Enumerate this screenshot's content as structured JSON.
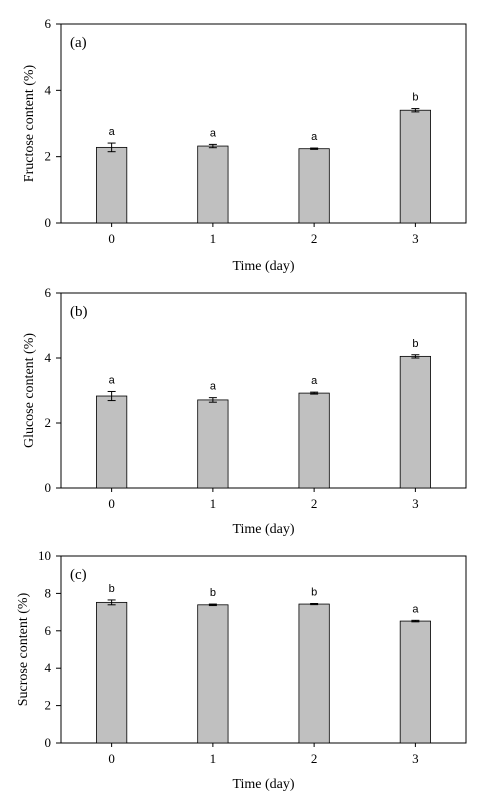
{
  "chart_data": [
    {
      "type": "bar",
      "panel_label": "(a)",
      "categories": [
        "0",
        "1",
        "2",
        "3"
      ],
      "values": [
        2.28,
        2.32,
        2.24,
        3.4
      ],
      "errors": [
        0.13,
        0.05,
        0.02,
        0.05
      ],
      "significance": [
        "a",
        "a",
        "a",
        "b"
      ],
      "xlabel": "Time (day)",
      "ylabel": "Fructose content (%)",
      "ylim": [
        0,
        6
      ],
      "yticks": [
        0,
        2,
        4,
        6
      ],
      "bar_color": "#c0c0c0"
    },
    {
      "type": "bar",
      "panel_label": "(b)",
      "categories": [
        "0",
        "1",
        "2",
        "3"
      ],
      "values": [
        2.83,
        2.71,
        2.92,
        4.05
      ],
      "errors": [
        0.14,
        0.07,
        0.03,
        0.05
      ],
      "significance": [
        "a",
        "a",
        "a",
        "b"
      ],
      "xlabel": "Time (day)",
      "ylabel": "Glucose content  (%)",
      "ylim": [
        0,
        6
      ],
      "yticks": [
        0,
        2,
        4,
        6
      ],
      "bar_color": "#c0c0c0"
    },
    {
      "type": "bar",
      "panel_label": "(c)",
      "categories": [
        "0",
        "1",
        "2",
        "3"
      ],
      "values": [
        7.52,
        7.39,
        7.43,
        6.52
      ],
      "errors": [
        0.13,
        0.04,
        0.03,
        0.04
      ],
      "significance": [
        "b",
        "b",
        "b",
        "a"
      ],
      "xlabel": "Time (day)",
      "ylabel": "Sucrose content  (%)",
      "ylim": [
        0,
        10
      ],
      "yticks": [
        0,
        2,
        4,
        6,
        8,
        10
      ],
      "bar_color": "#c0c0c0"
    }
  ]
}
